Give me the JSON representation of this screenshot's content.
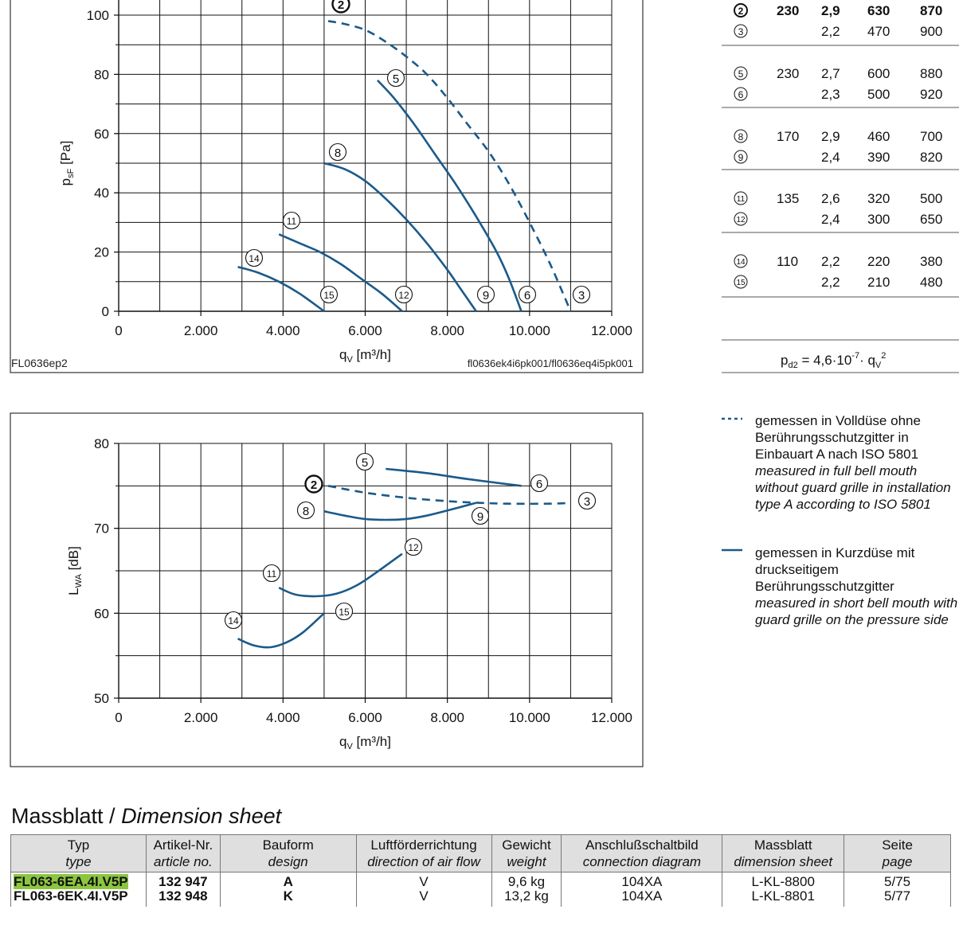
{
  "chart_data": [
    {
      "type": "line",
      "title": "",
      "xlabel": "qV [m³/h]",
      "ylabel": "psF [Pa]",
      "xlim": [
        0,
        12000
      ],
      "ylim": [
        0,
        100
      ],
      "x_ticks": [
        "0",
        "2.000",
        "4.000",
        "6.000",
        "8.000",
        "10.000",
        "12.000"
      ],
      "y_ticks": [
        "0",
        "20",
        "40",
        "60",
        "80",
        "100"
      ],
      "grid": true,
      "source_left": "FL0636ep2",
      "source_right": "fl0636ek4i6pk001/fl0636eq4i5pk001",
      "series": [
        {
          "name": "2-3",
          "style": "dashed",
          "label_start": "2",
          "label_end": "3",
          "x": [
            5100,
            5500,
            6000,
            6500,
            7000,
            7500,
            8000,
            8500,
            9000,
            9500,
            10000,
            10500,
            11000
          ],
          "y": [
            98,
            97,
            95,
            91,
            86,
            80,
            72,
            63,
            54,
            43,
            30,
            16,
            0
          ]
        },
        {
          "name": "5-6",
          "style": "solid",
          "label_start": "5",
          "label_end": "6",
          "x": [
            6300,
            6700,
            7200,
            7700,
            8200,
            8700,
            9200,
            9500,
            9800
          ],
          "y": [
            78,
            72,
            63,
            53,
            43,
            32,
            20,
            11,
            0
          ]
        },
        {
          "name": "8-9",
          "style": "solid",
          "label_start": "8",
          "label_end": "9",
          "x": [
            5000,
            5500,
            6000,
            6500,
            7000,
            7500,
            8000,
            8300,
            8700
          ],
          "y": [
            50,
            48,
            44,
            38,
            31,
            23,
            14,
            8,
            0
          ]
        },
        {
          "name": "11-12",
          "style": "solid",
          "label_start": "11",
          "label_end": "12",
          "x": [
            3900,
            4400,
            4900,
            5400,
            5900,
            6400,
            6900
          ],
          "y": [
            26,
            23,
            20,
            16,
            11,
            6,
            0
          ]
        },
        {
          "name": "14-15",
          "style": "solid",
          "label_start": "14",
          "label_end": "15",
          "x": [
            2900,
            3400,
            3900,
            4400,
            5000
          ],
          "y": [
            15,
            13,
            10,
            6,
            0
          ]
        }
      ]
    },
    {
      "type": "line",
      "title": "",
      "xlabel": "qV [m³/h]",
      "ylabel": "LWA [dB]",
      "xlim": [
        0,
        12000
      ],
      "ylim": [
        50,
        80
      ],
      "x_ticks": [
        "0",
        "2.000",
        "4.000",
        "6.000",
        "8.000",
        "10.000",
        "12.000"
      ],
      "y_ticks": [
        "50",
        "60",
        "70",
        "80"
      ],
      "grid": true,
      "series": [
        {
          "name": "2-3",
          "style": "dashed",
          "label_start": "2",
          "label_end": "3",
          "x": [
            5100,
            6000,
            7000,
            8000,
            8800,
            9500,
            10500,
            11000
          ],
          "y": [
            75,
            74.2,
            73.6,
            73.2,
            73,
            72.9,
            72.9,
            73
          ]
        },
        {
          "name": "5-6",
          "style": "solid",
          "label_start": "5",
          "label_end": "6",
          "x": [
            6500,
            7500,
            8500,
            9800
          ],
          "y": [
            77,
            76.5,
            75.8,
            75
          ]
        },
        {
          "name": "8-9",
          "style": "solid",
          "label_start": "8",
          "label_end": "9",
          "x": [
            5000,
            5500,
            6000,
            6500,
            7000,
            7500,
            8000,
            8700
          ],
          "y": [
            72,
            71.5,
            71.1,
            71,
            71.1,
            71.5,
            72.1,
            73
          ]
        },
        {
          "name": "11-12",
          "style": "solid",
          "label_start": "11",
          "label_end": "12",
          "x": [
            3900,
            4300,
            4800,
            5300,
            5800,
            6300,
            6900
          ],
          "y": [
            63,
            62.2,
            62,
            62.3,
            63.3,
            64.9,
            67
          ]
        },
        {
          "name": "14-15",
          "style": "solid",
          "label_start": "14",
          "label_end": "15",
          "x": [
            2900,
            3300,
            3700,
            4100,
            4500,
            5000
          ],
          "y": [
            57,
            56.2,
            56,
            56.6,
            57.8,
            60
          ]
        }
      ]
    }
  ],
  "operating_points": {
    "rows": [
      {
        "point": "2",
        "voltage": "230",
        "current": "2,9",
        "power": "630",
        "speed": "870",
        "bold": true
      },
      {
        "point": "3",
        "voltage": "",
        "current": "2,2",
        "power": "470",
        "speed": "900",
        "bold": false
      },
      {
        "point": "5",
        "voltage": "230",
        "current": "2,7",
        "power": "600",
        "speed": "880",
        "bold": false
      },
      {
        "point": "6",
        "voltage": "",
        "current": "2,3",
        "power": "500",
        "speed": "920",
        "bold": false
      },
      {
        "point": "8",
        "voltage": "170",
        "current": "2,9",
        "power": "460",
        "speed": "700",
        "bold": false
      },
      {
        "point": "9",
        "voltage": "",
        "current": "2,4",
        "power": "390",
        "speed": "820",
        "bold": false
      },
      {
        "point": "11",
        "voltage": "135",
        "current": "2,6",
        "power": "320",
        "speed": "500",
        "bold": false
      },
      {
        "point": "12",
        "voltage": "",
        "current": "2,4",
        "power": "300",
        "speed": "650",
        "bold": false
      },
      {
        "point": "14",
        "voltage": "110",
        "current": "2,2",
        "power": "220",
        "speed": "380",
        "bold": false
      },
      {
        "point": "15",
        "voltage": "",
        "current": "2,2",
        "power": "210",
        "speed": "480",
        "bold": false
      }
    ],
    "formula": {
      "lhs": "pd2 = 4,6·10",
      "exp": "-7",
      "mid": "· qV",
      "exp2": "2"
    }
  },
  "legend": {
    "dashed": {
      "de": "gemessen in Volldüse ohne Berührungsschutzgitter in Einbauart A nach ISO 5801",
      "en": "measured in full bell mouth without guard grille in installation type A according to ISO 5801"
    },
    "solid": {
      "de": "gemessen in Kurzdüse mit druckseitigem Berührungsschutzgitter",
      "en": "measured in short bell mouth with guard grille on the pressure side"
    }
  },
  "dimension_sheet": {
    "title_de": "Massblatt /",
    "title_en": "Dimension sheet",
    "headers": [
      {
        "de": "Typ",
        "en": "type"
      },
      {
        "de": "Artikel-Nr.",
        "en": "article no."
      },
      {
        "de": "Bauform",
        "en": "design"
      },
      {
        "de": "Luftförderrichtung",
        "en": "direction of air flow"
      },
      {
        "de": "Gewicht",
        "en": "weight"
      },
      {
        "de": "Anschlußschaltbild",
        "en": "connection diagram"
      },
      {
        "de": "Massblatt",
        "en": "dimension sheet"
      },
      {
        "de": "Seite",
        "en": "page"
      }
    ],
    "rows": [
      {
        "type": "FL063-6EA.4I.V5P",
        "article": "132 947",
        "design": "A",
        "flow": "V",
        "weight": "9,6 kg",
        "diagram": "104XA",
        "sheet": "L-KL-8800",
        "page": "5/75"
      },
      {
        "type": "FL063-6EK.4I.V5P",
        "article": "132 948",
        "design": "K",
        "flow": "V",
        "weight": "13,2 kg",
        "diagram": "104XA",
        "sheet": "L-KL-8801",
        "page": "5/77"
      }
    ]
  },
  "colors": {
    "curve": "#1b5a8a",
    "highlight": "#8cc63f"
  }
}
